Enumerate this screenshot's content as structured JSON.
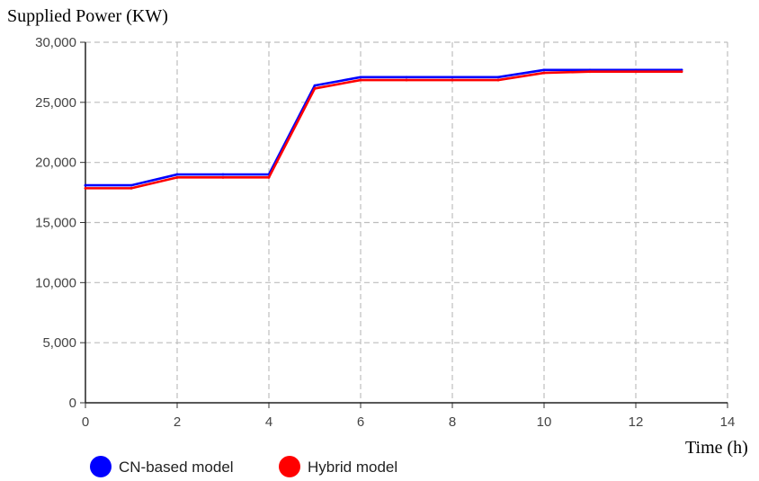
{
  "chart_data": {
    "type": "line",
    "ylabel": "Supplied Power (KW)",
    "xlabel": "Time (h)",
    "xlim": [
      0,
      14
    ],
    "ylim": [
      0,
      30000
    ],
    "x_ticks": [
      "0",
      "2",
      "4",
      "6",
      "8",
      "10",
      "12",
      "14"
    ],
    "y_ticks": [
      "0",
      "5,000",
      "10,000",
      "15,000",
      "20,000",
      "25,000",
      "30,000"
    ],
    "grid": true,
    "legend_position": "bottom-left",
    "x": [
      0,
      1,
      2,
      3,
      4,
      5,
      6,
      7,
      8,
      9,
      10,
      11,
      12,
      13
    ],
    "series": [
      {
        "name": "CN-based model",
        "color": "#0000ff",
        "values": [
          18000,
          18000,
          18900,
          18900,
          18900,
          26300,
          27000,
          27000,
          27000,
          27000,
          27600,
          27600,
          27600,
          27600
        ]
      },
      {
        "name": "Hybrid model",
        "color": "#ff0000",
        "values": [
          17950,
          17950,
          18850,
          18850,
          18850,
          26250,
          26950,
          26950,
          26950,
          26950,
          27550,
          27650,
          27650,
          27650
        ]
      }
    ]
  }
}
